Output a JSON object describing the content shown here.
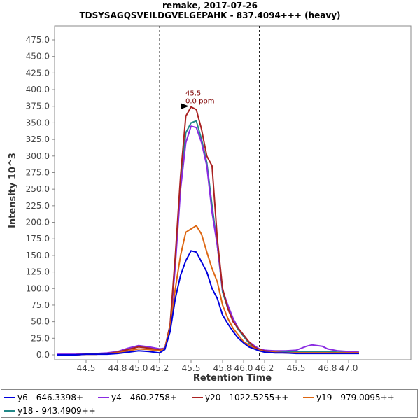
{
  "chart_data": {
    "type": "line",
    "title": "remake, 2017-07-26",
    "subtitle": "TDSYSAGQSVEILDGVELGEPAHK - 837.4094+++ (heavy)",
    "xlabel": "Retention Time",
    "ylabel": "Intensity 10^3",
    "xlim": [
      44.2,
      47.15
    ],
    "ylim": [
      0,
      500
    ],
    "x_ticks": [
      44.5,
      44.8,
      45.0,
      45.2,
      45.5,
      45.8,
      46.0,
      46.2,
      46.5,
      46.8,
      47.0
    ],
    "y_ticks": [
      0.0,
      25.0,
      50.0,
      75.0,
      100.0,
      125.0,
      150.0,
      175.0,
      200.0,
      225.0,
      250.0,
      275.0,
      300.0,
      325.0,
      350.0,
      375.0,
      400.0,
      425.0,
      450.0,
      475.0
    ],
    "x_tick_labels": [
      "44.5",
      "44.8",
      "45.0",
      "45.2",
      "45.5",
      "45.8",
      "46.0",
      "46.2",
      "46.5",
      "46.8",
      "47.0"
    ],
    "y_tick_labels": [
      "0.0",
      "25.0",
      "50.0",
      "75.0",
      "100.0",
      "125.0",
      "150.0",
      "175.0",
      "200.0",
      "225.0",
      "250.0",
      "275.0",
      "300.0",
      "325.0",
      "350.0",
      "375.0",
      "400.0",
      "425.0",
      "450.0",
      "475.0"
    ],
    "integration_bounds": [
      45.2,
      46.15
    ],
    "peak_annotation": {
      "x": 45.5,
      "y": 374,
      "label_rt": "45.5",
      "label_ppm": "0.0 ppm",
      "color": "#800000"
    },
    "grid": false,
    "legend_position": "bottom",
    "x": [
      44.22,
      44.4,
      44.5,
      44.6,
      44.7,
      44.8,
      44.9,
      45.0,
      45.1,
      45.2,
      45.25,
      45.3,
      45.35,
      45.4,
      45.45,
      45.5,
      45.55,
      45.6,
      45.65,
      45.7,
      45.75,
      45.8,
      45.85,
      45.9,
      45.95,
      46.0,
      46.05,
      46.1,
      46.15,
      46.2,
      46.3,
      46.4,
      46.5,
      46.55,
      46.6,
      46.65,
      46.7,
      46.75,
      46.8,
      46.9,
      47.0,
      47.1
    ],
    "series": [
      {
        "name": "y6 - 646.3398+",
        "color": "#0000dd",
        "values": [
          0,
          0,
          1,
          1,
          1,
          2,
          4,
          6,
          5,
          3,
          8,
          35,
          85,
          120,
          142,
          157,
          155,
          140,
          125,
          100,
          85,
          60,
          47,
          35,
          25,
          18,
          12,
          9,
          6,
          4,
          3,
          3,
          2,
          2,
          2,
          2,
          2,
          2,
          2,
          2,
          2,
          2
        ]
      },
      {
        "name": "y4 - 460.2758+",
        "color": "#8a2be2",
        "values": [
          1,
          1,
          2,
          2,
          3,
          5,
          10,
          14,
          12,
          9,
          10,
          40,
          135,
          250,
          320,
          345,
          343,
          320,
          285,
          215,
          165,
          98,
          75,
          55,
          40,
          30,
          20,
          14,
          9,
          7,
          6,
          6,
          7,
          10,
          13,
          15,
          14,
          13,
          9,
          6,
          5,
          4
        ]
      },
      {
        "name": "y20 - 1022.5255++",
        "color": "#aa2222",
        "values": [
          0,
          0,
          1,
          1,
          2,
          4,
          8,
          12,
          10,
          7,
          10,
          45,
          150,
          270,
          360,
          374,
          370,
          340,
          300,
          285,
          175,
          100,
          70,
          50,
          40,
          30,
          20,
          12,
          8,
          6,
          4,
          3,
          3,
          3,
          3,
          3,
          3,
          3,
          3,
          3,
          3,
          3
        ]
      },
      {
        "name": "y19 - 979.0095++",
        "color": "#dd6611",
        "values": [
          0,
          0,
          1,
          1,
          2,
          3,
          6,
          9,
          8,
          6,
          10,
          40,
          100,
          150,
          185,
          190,
          195,
          182,
          155,
          130,
          110,
          75,
          55,
          40,
          30,
          20,
          15,
          10,
          7,
          5,
          4,
          3,
          3,
          3,
          3,
          3,
          3,
          3,
          3,
          3,
          3,
          3
        ]
      },
      {
        "name": "y18 - 943.4909++",
        "color": "#228888",
        "values": [
          0,
          0,
          1,
          1,
          2,
          4,
          9,
          13,
          11,
          8,
          10,
          42,
          140,
          260,
          335,
          350,
          353,
          325,
          290,
          225,
          165,
          95,
          70,
          52,
          38,
          28,
          18,
          12,
          8,
          6,
          5,
          5,
          5,
          5,
          5,
          5,
          5,
          5,
          5,
          4,
          4,
          4
        ]
      }
    ]
  }
}
